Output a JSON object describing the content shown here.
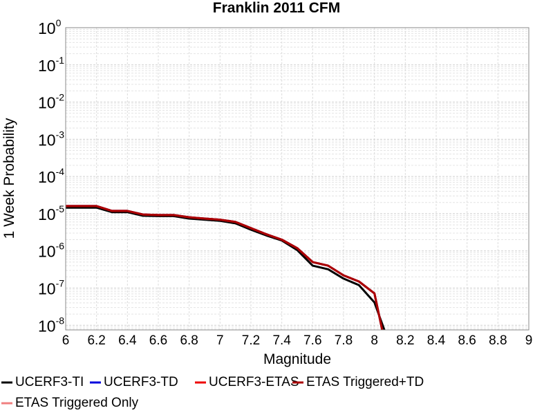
{
  "chart_data": {
    "type": "line",
    "title": "Franklin 2011 CFM",
    "xlabel": "Magnitude",
    "ylabel": "1 Week Probability",
    "x": [
      6.0,
      6.1,
      6.2,
      6.3,
      6.4,
      6.5,
      6.6,
      6.7,
      6.8,
      6.9,
      7.0,
      7.1,
      7.2,
      7.3,
      7.4,
      7.5,
      7.6,
      7.7,
      7.8,
      7.9,
      8.0,
      8.1
    ],
    "series": [
      {
        "name": "UCERF3-TI",
        "color": "#000000",
        "values": [
          1.45e-05,
          1.45e-05,
          1.45e-05,
          1.1e-05,
          1.1e-05,
          8.8e-06,
          8.6e-06,
          8.6e-06,
          7.4e-06,
          6.9e-06,
          6.4e-06,
          5.5e-06,
          3.7e-06,
          2.6e-06,
          1.9e-06,
          1.05e-06,
          4e-07,
          3.2e-07,
          1.8e-07,
          1.2e-07,
          4.1e-08,
          2.9e-09
        ]
      },
      {
        "name": "UCERF3-TD",
        "color": "#0000dd",
        "values": [
          1.6e-05,
          1.6e-05,
          1.6e-05,
          1.19e-05,
          1.19e-05,
          9.5e-06,
          9.2e-06,
          9.2e-06,
          8e-06,
          7.4e-06,
          6.9e-06,
          6e-06,
          4.1e-06,
          2.8e-06,
          2e-06,
          1.18e-06,
          5e-07,
          4e-07,
          2.2e-07,
          1.5e-07,
          7.2e-08,
          8e-10
        ]
      },
      {
        "name": "UCERF3-ETAS",
        "color": "#ee0000",
        "values": [
          1.6e-05,
          1.6e-05,
          1.6e-05,
          1.19e-05,
          1.19e-05,
          9.5e-06,
          9.2e-06,
          9.2e-06,
          8e-06,
          7.4e-06,
          6.9e-06,
          6e-06,
          4.1e-06,
          2.8e-06,
          2e-06,
          1.18e-06,
          5e-07,
          4e-07,
          2.2e-07,
          1.5e-07,
          7.2e-08,
          8e-10
        ]
      },
      {
        "name": "ETAS Triggered+TD",
        "color": "#aa0000",
        "values": [
          1.6e-05,
          1.6e-05,
          1.6e-05,
          1.19e-05,
          1.19e-05,
          9.5e-06,
          9.2e-06,
          9.2e-06,
          8e-06,
          7.4e-06,
          6.9e-06,
          6e-06,
          4.1e-06,
          2.8e-06,
          2e-06,
          1.18e-06,
          5e-07,
          4e-07,
          2.2e-07,
          1.5e-07,
          7.2e-08,
          8e-10
        ]
      },
      {
        "name": "ETAS Triggered Only",
        "color": "#f08080",
        "values": [
          null,
          null,
          null,
          null,
          null,
          null,
          null,
          null,
          null,
          null,
          null,
          null,
          null,
          null,
          null,
          null,
          null,
          null,
          null,
          null,
          null,
          null
        ]
      }
    ],
    "xlim": [
      6,
      9
    ],
    "xticks": [
      6,
      6.2,
      6.4,
      6.6,
      6.8,
      7,
      7.2,
      7.4,
      7.6,
      7.8,
      8,
      8.2,
      8.4,
      8.6,
      8.8,
      9
    ],
    "ylim": [
      7.5e-09,
      1
    ],
    "yticks": [
      {
        "value": 1e-08,
        "label": "10",
        "exponent": "-8"
      },
      {
        "value": 1e-07,
        "label": "10",
        "exponent": "-7"
      },
      {
        "value": 1e-06,
        "label": "10",
        "exponent": "-6"
      },
      {
        "value": 1e-05,
        "label": "10",
        "exponent": "-5"
      },
      {
        "value": 0.0001,
        "label": "10",
        "exponent": "-4"
      },
      {
        "value": 0.001,
        "label": "10",
        "exponent": "-3"
      },
      {
        "value": 0.01,
        "label": "10",
        "exponent": "-2"
      },
      {
        "value": 0.1,
        "label": "10",
        "exponent": "-1"
      },
      {
        "value": 1,
        "label": "10",
        "exponent": "0"
      }
    ],
    "ylog": true,
    "grid": true,
    "minor_grid": true,
    "legend": "bottom"
  }
}
